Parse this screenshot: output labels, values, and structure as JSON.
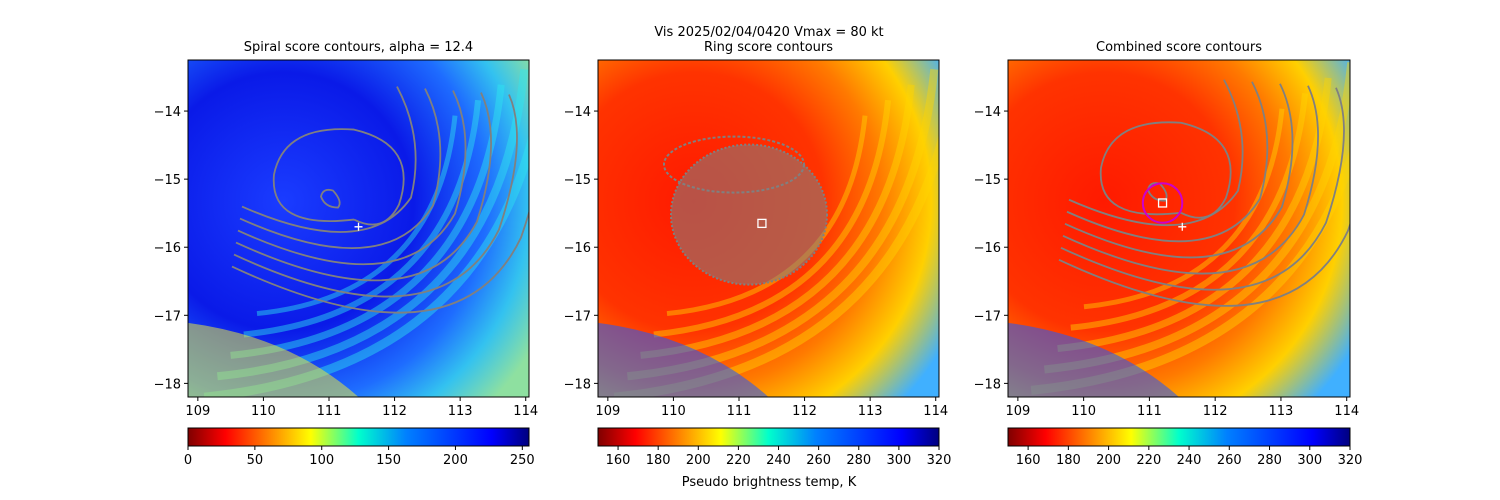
{
  "suptitle": {
    "line1": "Vis  2025/02/04/0420    Vmax = 80 kt"
  },
  "colorbar_label": "Pseudo brightness temp, K",
  "colors": {
    "contour": "#808080",
    "center_marker": "#ffffff",
    "ring_circle": "#cc00cc"
  },
  "chart_data": [
    {
      "type": "heatmap",
      "title": "Spiral score contours, alpha = 12.4",
      "colormap": "jet",
      "x_range": [
        108.85,
        114.05
      ],
      "y_range": [
        -18.2,
        -13.25
      ],
      "xticks": [
        109,
        110,
        111,
        112,
        113,
        114
      ],
      "yticks": [
        -14,
        -15,
        -16,
        -17,
        -18
      ],
      "colorbar": {
        "range": [
          0,
          255
        ],
        "ticks": [
          0,
          50,
          100,
          150,
          200,
          250
        ]
      },
      "eye_center": [
        111.0,
        -15.3
      ],
      "best_track_marker": {
        "symbol": "+",
        "lon": 111.45,
        "lat": -15.7
      },
      "contour_count": 8
    },
    {
      "type": "heatmap",
      "title": "Ring score contours",
      "colormap": "jet_r",
      "x_range": [
        108.85,
        114.05
      ],
      "y_range": [
        -18.2,
        -13.25
      ],
      "xticks": [
        109,
        110,
        111,
        112,
        113,
        114
      ],
      "yticks": [
        -14,
        -15,
        -16,
        -17,
        -18
      ],
      "colorbar": {
        "range": [
          150,
          320
        ],
        "ticks": [
          160,
          180,
          200,
          220,
          240,
          260,
          280,
          300,
          320
        ]
      },
      "ring_region_center": [
        111.0,
        -15.3
      ],
      "center_marker": {
        "symbol": "square",
        "lon": 111.35,
        "lat": -15.65
      }
    },
    {
      "type": "heatmap",
      "title": "Combined score contours",
      "colormap": "jet_r",
      "x_range": [
        108.85,
        114.05
      ],
      "y_range": [
        -18.2,
        -13.25
      ],
      "xticks": [
        109,
        110,
        111,
        112,
        113,
        114
      ],
      "yticks": [
        -14,
        -15,
        -16,
        -17,
        -18
      ],
      "colorbar": {
        "range": [
          150,
          320
        ],
        "ticks": [
          160,
          180,
          200,
          220,
          240,
          260,
          280,
          300,
          320
        ]
      },
      "eye_center": [
        111.1,
        -15.2
      ],
      "center_marker": {
        "symbol": "square",
        "lon": 111.2,
        "lat": -15.35
      },
      "best_track_marker": {
        "symbol": "+",
        "lon": 111.5,
        "lat": -15.7
      },
      "ring_circle": {
        "lon": 111.2,
        "lat": -15.35,
        "radius_deg": 0.3
      },
      "contour_count": 8
    }
  ]
}
